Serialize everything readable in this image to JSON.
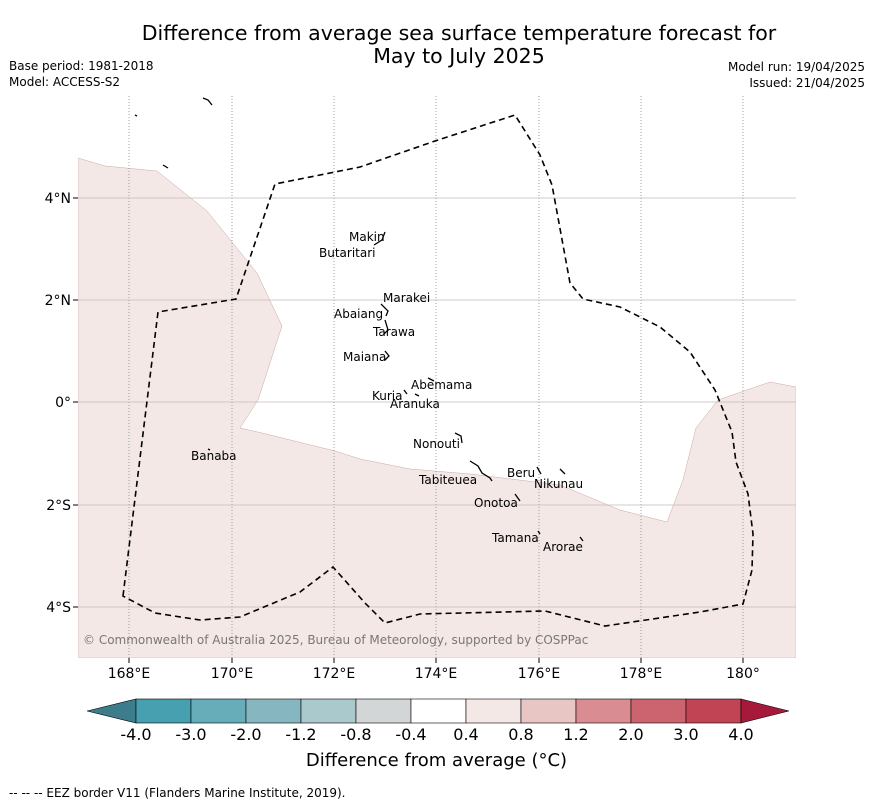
{
  "header": {
    "title_line1": "Difference from average sea surface temperature forecast for",
    "title_line2": "May to July 2025",
    "base_period": "Base period: 1981-2018",
    "model": "Model: ACCESS-S2",
    "model_run": "Model run: 19/04/2025",
    "issued": "Issued: 21/04/2025"
  },
  "map": {
    "x_ticks": [
      "168°E",
      "170°E",
      "172°E",
      "174°E",
      "176°E",
      "178°E",
      "180°"
    ],
    "y_ticks": [
      "4°N",
      "2°N",
      "0°",
      "2°S",
      "4°S"
    ],
    "copyright": "© Commonwealth of Australia 2025, Bureau of Meteorology, supported by COSPPac",
    "places": [
      {
        "name": "Makin"
      },
      {
        "name": "Butaritari"
      },
      {
        "name": "Marakei"
      },
      {
        "name": "Abaiang"
      },
      {
        "name": "Tarawa"
      },
      {
        "name": "Maiana"
      },
      {
        "name": "Abemama"
      },
      {
        "name": "Kuria"
      },
      {
        "name": "Aranuka"
      },
      {
        "name": "Nonouti"
      },
      {
        "name": "Banaba"
      },
      {
        "name": "Beru"
      },
      {
        "name": "Nikunau"
      },
      {
        "name": "Tabiteuea"
      },
      {
        "name": "Onotoa"
      },
      {
        "name": "Tamana"
      },
      {
        "name": "Arorae"
      }
    ],
    "anomaly_fill_color": "#f4e8e6",
    "unfilled_color": "#ffffff"
  },
  "colorbar": {
    "label": "Difference from average (°C)",
    "ticks": [
      "-4.0",
      "-3.0",
      "-2.0",
      "-1.2",
      "-0.8",
      "-0.4",
      "0.4",
      "0.8",
      "1.2",
      "2.0",
      "3.0",
      "4.0"
    ],
    "colors": [
      "#3d7d8b",
      "#46a0b0",
      "#66acb9",
      "#86b6c0",
      "#a9c9cd",
      "#d3d6d6",
      "#ffffff",
      "#f4e8e6",
      "#e8c6c3",
      "#d98d93",
      "#cc6470",
      "#c14455",
      "#a6193a"
    ]
  },
  "footer": {
    "eez_legend": "--  --  -- EEZ border V11 (Flanders Marine Institute, 2019)."
  }
}
